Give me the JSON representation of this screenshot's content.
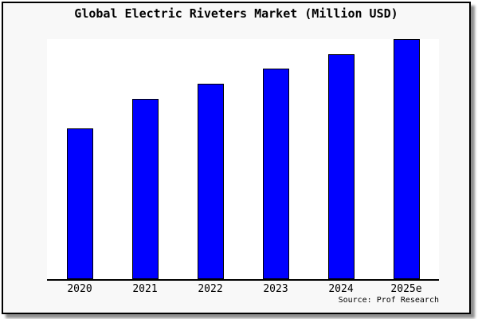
{
  "title": "Global Electric Riveters Market (Million USD)",
  "source": "Source: Prof Research",
  "colors": {
    "bar_fill": "#0000FF",
    "bar_edge": "#000000",
    "plot_bg": "#FFFFFF",
    "frame_bg": "#F8F8F8",
    "axis": "#000000",
    "text": "#000000"
  },
  "chart_data": {
    "type": "bar",
    "title": "Global Electric Riveters Market (Million USD)",
    "categories": [
      "2020",
      "2021",
      "2022",
      "2023",
      "2024",
      "2025e"
    ],
    "values": [
      62.7,
      75.0,
      81.4,
      87.8,
      93.7,
      100.0
    ],
    "value_scale": "relative index estimated from bar heights; chart shows no y-axis tick labels (max bar = 100)",
    "xlabel": "",
    "ylabel": "",
    "ylim": [
      0,
      100
    ],
    "grid": false,
    "legend": false,
    "annotation": "Source: Prof Research"
  }
}
